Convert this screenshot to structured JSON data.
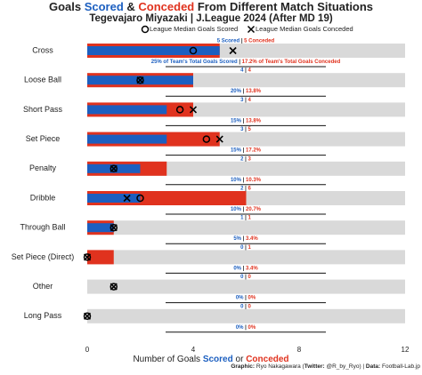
{
  "chart_data": {
    "type": "bar",
    "title": [
      "Goals ",
      "Scored",
      " & ",
      "Conceded",
      " From Different Match Situations"
    ],
    "subtitle": "Tegevajaro Miyazaki | J.League 2024 (After MD 19)",
    "x_label": [
      "Number of Goals ",
      "Scored",
      " or ",
      "Conceded"
    ],
    "caption": [
      "Graphic:",
      " Ryo Nakagawara (",
      "Twitter:",
      " @R_by_Ryo) | ",
      "Data:",
      " Football-Lab.jp"
    ],
    "separator": " | ",
    "categories": [
      "Cross",
      "Loose Ball",
      "Short Pass",
      "Set Piece",
      "Penalty",
      "Dribble",
      "Through Ball",
      "Set Piece (Direct)",
      "Other",
      "Long Pass"
    ],
    "series": [
      {
        "color": "#1c5fc0",
        "marker": "bar",
        "values": [
          5,
          4,
          3,
          3,
          2,
          2,
          1,
          0,
          0,
          0
        ],
        "value_labels": [
          "5 Scored",
          "4",
          "3",
          "3",
          "2",
          "2",
          "1",
          "0",
          "0",
          "0"
        ],
        "shares": [
          25,
          20,
          15,
          15,
          10,
          10,
          5,
          0,
          0,
          0
        ],
        "share_labels": [
          "25% of Team's Total Goals Scored",
          "20%",
          "15%",
          "15%",
          "10%",
          "10%",
          "5%",
          "0%",
          "0%",
          "0%"
        ]
      },
      {
        "color": "#e0321e",
        "marker": "bar",
        "values": [
          5,
          4,
          4,
          5,
          3,
          6,
          1,
          1,
          0,
          0
        ],
        "value_labels": [
          "5 Conceded",
          "4",
          "4",
          "5",
          "3",
          "6",
          "1",
          "1",
          "0",
          "0"
        ],
        "shares": [
          17.2,
          13.8,
          13.8,
          17.2,
          10.3,
          20.7,
          3.4,
          3.4,
          0,
          0
        ],
        "share_labels": [
          "17.2% of Team's Total Goals Conceded",
          "13.8%",
          "13.8%",
          "17.2%",
          "10.3%",
          "20.7%",
          "3.4%",
          "3.4%",
          "0%",
          "0%"
        ]
      },
      {
        "name": "League Median Goals Scored",
        "color": "#000000",
        "marker": "circle",
        "values": [
          4,
          2,
          3.5,
          4.5,
          1,
          2,
          1,
          0,
          1,
          0
        ]
      },
      {
        "name": "League Median Goals Conceded",
        "color": "#000000",
        "marker": "x",
        "values": [
          5.5,
          2,
          4,
          5,
          1,
          1.5,
          1,
          0,
          1,
          0
        ]
      }
    ],
    "xlim": [
      0,
      12
    ],
    "xticks": [
      0,
      4,
      8,
      12
    ]
  }
}
